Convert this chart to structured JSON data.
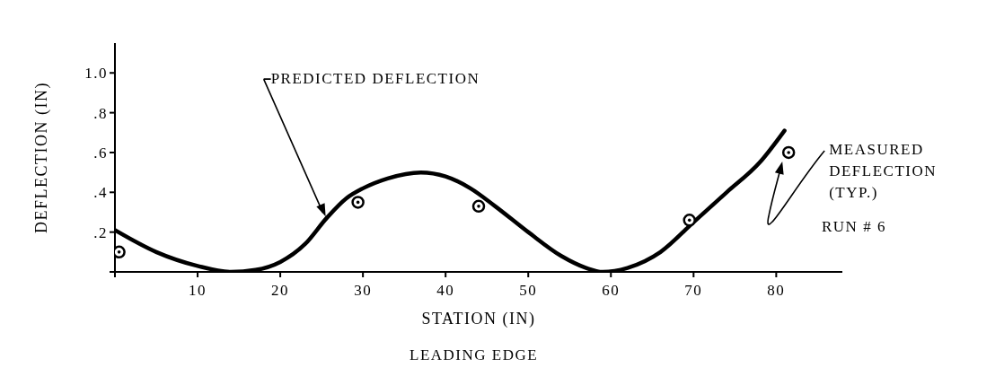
{
  "chart_data": {
    "type": "line",
    "xlabel": "STATION (IN)",
    "ylabel": "DEFLECTION (IN)",
    "xlim": [
      0,
      88
    ],
    "xticks": [
      {
        "value": 0,
        "label": null
      },
      10,
      20,
      30,
      40,
      50,
      60,
      70,
      80
    ],
    "ylim": [
      0,
      1.15
    ],
    "yticks": [
      {
        "value": 0,
        "label": null
      },
      {
        "value": 0.2,
        "label": ".2"
      },
      {
        "value": 0.4,
        "label": ".4"
      },
      {
        "value": 0.6,
        "label": ".6"
      },
      {
        "value": 0.8,
        "label": ".8"
      },
      {
        "value": 1.0,
        "label": "1.0"
      }
    ],
    "grid": false,
    "series": [
      {
        "color": "#000000",
        "marker": "none",
        "line_style": "solid",
        "x": [
          0,
          5,
          10,
          14,
          17,
          20,
          23,
          25.6,
          28,
          30,
          33,
          37,
          40,
          43,
          46,
          50,
          54,
          57,
          59,
          62,
          66,
          70,
          74,
          78,
          81
        ],
        "values": [
          0.21,
          0.1,
          0.03,
          0,
          0.01,
          0.05,
          0.14,
          0.27,
          0.37,
          0.42,
          0.47,
          0.5,
          0.48,
          0.42,
          0.33,
          0.2,
          0.08,
          0.02,
          0,
          0.02,
          0.1,
          0.25,
          0.4,
          0.55,
          0.71
        ]
      },
      {
        "type": "scatter",
        "color": "#000000",
        "marker": "circle",
        "x": [
          0.5,
          29.4,
          44,
          69.5,
          81.5
        ],
        "values": [
          0.1,
          0.35,
          0.33,
          0.26,
          0.6
        ]
      }
    ],
    "annotations": [
      {
        "text": "PREDICTED DEFLECTION",
        "x": 25.6,
        "y": 0.27
      },
      {
        "text": "MEASURED DEFLECTION (TYP.)",
        "x": 81.5,
        "y": 0.6
      },
      "RUN # 6",
      "LEADING EDGE"
    ]
  }
}
